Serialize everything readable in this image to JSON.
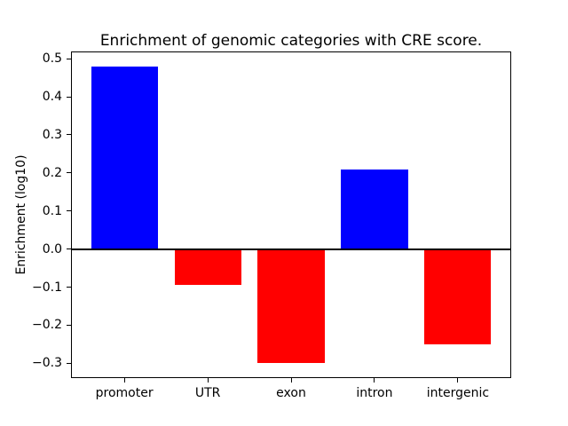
{
  "figure": {
    "background_color": "#ffffff",
    "text_color": "#000000",
    "spine_color": "#000000"
  },
  "chart_data": {
    "type": "bar",
    "title": "Enrichment of genomic categories with CRE score.",
    "xlabel": "",
    "ylabel": "Enrichment (log10)",
    "categories": [
      "promoter",
      "UTR",
      "exon",
      "intron",
      "intergenic"
    ],
    "values": [
      0.48,
      -0.095,
      -0.3,
      0.21,
      -0.25
    ],
    "bar_colors": [
      "#0000ff",
      "#ff0000",
      "#ff0000",
      "#0000ff",
      "#ff0000"
    ],
    "positive_color": "#0000ff",
    "negative_color": "#ff0000",
    "ylim": [
      -0.339,
      0.519
    ],
    "y_ticks": [
      0.5,
      0.4,
      0.3,
      0.2,
      0.1,
      0.0,
      -0.1,
      -0.2,
      -0.3
    ],
    "bar_width_fraction": 0.8,
    "zero_line": true,
    "grid": false,
    "legend_position": "none"
  }
}
